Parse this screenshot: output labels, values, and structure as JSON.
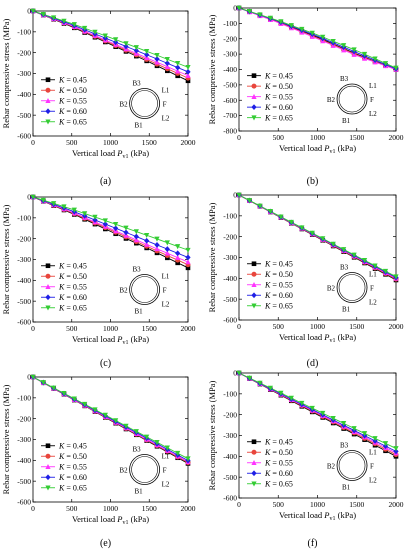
{
  "figure": {
    "legend_symbol": "K",
    "ring_labels": [
      "B3",
      "L1",
      "F",
      "L2",
      "B1",
      "B2"
    ]
  },
  "chart_data": [
    {
      "panel": "(a)",
      "type": "line",
      "ylabel": "Rebar compressive stress (MPa)",
      "xlabel_main": "Vertical load ",
      "xlabel_var": "P",
      "xlabel_sub": "v1",
      "xlabel_unit": " (kPa)",
      "xlim": [
        0,
        2000
      ],
      "ylim": [
        -600,
        0
      ],
      "xticks": [
        0,
        500,
        1000,
        1500,
        2000
      ],
      "yticks": [
        0,
        -100,
        -200,
        -300,
        -400,
        -500,
        -600
      ],
      "legend": "left",
      "series": [
        {
          "name": "= 0.45",
          "color": "#000000",
          "marker": "square",
          "x": [
            0,
            500,
            1000,
            1500,
            2000
          ],
          "y": [
            0,
            -75,
            -160,
            -245,
            -335
          ]
        },
        {
          "name": "= 0.50",
          "color": "#e8453c",
          "marker": "circle",
          "x": [
            0,
            500,
            1000,
            1500,
            2000
          ],
          "y": [
            0,
            -72,
            -155,
            -238,
            -322
          ]
        },
        {
          "name": "= 0.55",
          "color": "#ff33ff",
          "marker": "triangle",
          "x": [
            0,
            500,
            1000,
            1500,
            2000
          ],
          "y": [
            0,
            -70,
            -150,
            -230,
            -310
          ]
        },
        {
          "name": "= 0.60",
          "color": "#1f1fe6",
          "marker": "diamond",
          "x": [
            0,
            500,
            1000,
            1500,
            2000
          ],
          "y": [
            0,
            -65,
            -140,
            -215,
            -292
          ]
        },
        {
          "name": "= 0.65",
          "color": "#33cc33",
          "marker": "triangle-down",
          "x": [
            0,
            500,
            1000,
            1500,
            2000
          ],
          "y": [
            0,
            -60,
            -128,
            -198,
            -270
          ]
        }
      ]
    },
    {
      "panel": "(b)",
      "type": "line",
      "ylabel": "Rebar compressive stress (MPa)",
      "xlabel_main": "Vertical load ",
      "xlabel_var": "P",
      "xlabel_sub": "v1",
      "xlabel_unit": " (kPa)",
      "xlim": [
        0,
        2000
      ],
      "ylim": [
        -800,
        0
      ],
      "xticks": [
        0,
        500,
        1000,
        1500,
        2000
      ],
      "yticks": [
        0,
        -100,
        -200,
        -300,
        -400,
        -500,
        -600,
        -700,
        -800
      ],
      "legend": "left",
      "series": [
        {
          "name": "= 0.45",
          "color": "#000000",
          "marker": "square",
          "x": [
            0,
            500,
            1000,
            1500,
            2000
          ],
          "y": [
            0,
            -90,
            -190,
            -300,
            -400
          ]
        },
        {
          "name": "= 0.50",
          "color": "#e8453c",
          "marker": "circle",
          "x": [
            0,
            500,
            1000,
            1500,
            2000
          ],
          "y": [
            0,
            -92,
            -195,
            -305,
            -400
          ]
        },
        {
          "name": "= 0.55",
          "color": "#ff33ff",
          "marker": "triangle",
          "x": [
            0,
            500,
            1000,
            1500,
            2000
          ],
          "y": [
            0,
            -95,
            -200,
            -310,
            -400
          ]
        },
        {
          "name": "= 0.60",
          "color": "#1f1fe6",
          "marker": "diamond",
          "x": [
            0,
            500,
            1000,
            1500,
            2000
          ],
          "y": [
            0,
            -86,
            -183,
            -290,
            -395
          ]
        },
        {
          "name": "= 0.65",
          "color": "#33cc33",
          "marker": "triangle-down",
          "x": [
            0,
            500,
            1000,
            1500,
            2000
          ],
          "y": [
            0,
            -82,
            -175,
            -278,
            -390
          ]
        }
      ]
    },
    {
      "panel": "(c)",
      "type": "line",
      "ylabel": "Rebar compressive stress (MPa)",
      "xlabel_main": "Vertical load ",
      "xlabel_var": "P",
      "xlabel_sub": "v1",
      "xlabel_unit": " (kPa)",
      "xlim": [
        0,
        2000
      ],
      "ylim": [
        -600,
        0
      ],
      "xticks": [
        0,
        500,
        1000,
        1500,
        2000
      ],
      "yticks": [
        0,
        -100,
        -200,
        -300,
        -400,
        -500,
        -600
      ],
      "legend": "left",
      "series": [
        {
          "name": "= 0.45",
          "color": "#000000",
          "marker": "square",
          "x": [
            0,
            500,
            1000,
            1500,
            2000
          ],
          "y": [
            0,
            -78,
            -165,
            -250,
            -340
          ]
        },
        {
          "name": "= 0.50",
          "color": "#e8453c",
          "marker": "circle",
          "x": [
            0,
            500,
            1000,
            1500,
            2000
          ],
          "y": [
            0,
            -75,
            -158,
            -242,
            -325
          ]
        },
        {
          "name": "= 0.55",
          "color": "#ff33ff",
          "marker": "triangle",
          "x": [
            0,
            500,
            1000,
            1500,
            2000
          ],
          "y": [
            0,
            -72,
            -152,
            -233,
            -312
          ]
        },
        {
          "name": "= 0.60",
          "color": "#1f1fe6",
          "marker": "diamond",
          "x": [
            0,
            500,
            1000,
            1500,
            2000
          ],
          "y": [
            0,
            -66,
            -140,
            -215,
            -290
          ]
        },
        {
          "name": "= 0.65",
          "color": "#33cc33",
          "marker": "triangle-down",
          "x": [
            0,
            500,
            1000,
            1500,
            2000
          ],
          "y": [
            0,
            -58,
            -122,
            -188,
            -255
          ]
        }
      ]
    },
    {
      "panel": "(d)",
      "type": "line",
      "ylabel": "Rebar compressive stress (MPa)",
      "xlabel_main": "Vertical load ",
      "xlabel_var": "P",
      "xlabel_sub": "v1",
      "xlabel_unit": " (kPa)",
      "xlim": [
        0,
        2000
      ],
      "ylim": [
        -600,
        0
      ],
      "xticks": [
        0,
        500,
        1000,
        1500,
        2000
      ],
      "yticks": [
        0,
        -100,
        -200,
        -300,
        -400,
        -500,
        -600
      ],
      "legend": "left",
      "series": [
        {
          "name": "= 0.45",
          "color": "#000000",
          "marker": "square",
          "x": [
            0,
            500,
            1000,
            1500,
            2000
          ],
          "y": [
            0,
            -102,
            -204,
            -306,
            -408
          ]
        },
        {
          "name": "= 0.50",
          "color": "#e8453c",
          "marker": "circle",
          "x": [
            0,
            500,
            1000,
            1500,
            2000
          ],
          "y": [
            0,
            -101,
            -202,
            -303,
            -404
          ]
        },
        {
          "name": "= 0.55",
          "color": "#ff33ff",
          "marker": "triangle",
          "x": [
            0,
            500,
            1000,
            1500,
            2000
          ],
          "y": [
            0,
            -100,
            -200,
            -300,
            -400
          ]
        },
        {
          "name": "= 0.60",
          "color": "#1f1fe6",
          "marker": "diamond",
          "x": [
            0,
            500,
            1000,
            1500,
            2000
          ],
          "y": [
            0,
            -99,
            -198,
            -297,
            -396
          ]
        },
        {
          "name": "= 0.65",
          "color": "#33cc33",
          "marker": "triangle-down",
          "x": [
            0,
            500,
            1000,
            1500,
            2000
          ],
          "y": [
            0,
            -98,
            -196,
            -294,
            -392
          ]
        }
      ]
    },
    {
      "panel": "(e)",
      "type": "line",
      "ylabel": "Rebar compressive stress (MPa)",
      "xlabel_main": "Vertical load ",
      "xlabel_var": "P",
      "xlabel_sub": "v1",
      "xlabel_unit": " (kPa)",
      "xlim": [
        0,
        2000
      ],
      "ylim": [
        -600,
        0
      ],
      "xticks": [
        0,
        500,
        1000,
        1500,
        2000
      ],
      "yticks": [
        0,
        -100,
        -200,
        -300,
        -400,
        -500,
        -600
      ],
      "legend": "left",
      "series": [
        {
          "name": "= 0.45",
          "color": "#000000",
          "marker": "square",
          "x": [
            0,
            500,
            1000,
            1500,
            2000
          ],
          "y": [
            0,
            -104,
            -208,
            -312,
            -415
          ]
        },
        {
          "name": "= 0.50",
          "color": "#e8453c",
          "marker": "circle",
          "x": [
            0,
            500,
            1000,
            1500,
            2000
          ],
          "y": [
            0,
            -103,
            -206,
            -309,
            -411
          ]
        },
        {
          "name": "= 0.55",
          "color": "#ff33ff",
          "marker": "triangle",
          "x": [
            0,
            500,
            1000,
            1500,
            2000
          ],
          "y": [
            0,
            -102,
            -204,
            -306,
            -407
          ]
        },
        {
          "name": "= 0.60",
          "color": "#1f1fe6",
          "marker": "diamond",
          "x": [
            0,
            500,
            1000,
            1500,
            2000
          ],
          "y": [
            0,
            -100,
            -200,
            -300,
            -401
          ]
        },
        {
          "name": "= 0.65",
          "color": "#33cc33",
          "marker": "triangle-down",
          "x": [
            0,
            500,
            1000,
            1500,
            2000
          ],
          "y": [
            0,
            -98,
            -196,
            -294,
            -392
          ]
        }
      ]
    },
    {
      "panel": "(f)",
      "type": "line",
      "ylabel": "Rebar compressive stress (MPa)",
      "xlabel_main": "Vertical load ",
      "xlabel_var": "P",
      "xlabel_sub": "v1",
      "xlabel_unit": " (kPa)",
      "xlim": [
        0,
        2000
      ],
      "ylim": [
        -600,
        0
      ],
      "xticks": [
        0,
        500,
        1000,
        1500,
        2000
      ],
      "yticks": [
        0,
        -100,
        -200,
        -300,
        -400,
        -500,
        -600
      ],
      "legend": "left",
      "series": [
        {
          "name": "= 0.45",
          "color": "#000000",
          "marker": "square",
          "x": [
            0,
            500,
            1000,
            1500,
            2000
          ],
          "y": [
            0,
            -100,
            -200,
            -300,
            -400
          ]
        },
        {
          "name": "= 0.50",
          "color": "#e8453c",
          "marker": "circle",
          "x": [
            0,
            500,
            1000,
            1500,
            2000
          ],
          "y": [
            0,
            -98,
            -196,
            -294,
            -392
          ]
        },
        {
          "name": "= 0.55",
          "color": "#ff33ff",
          "marker": "triangle",
          "x": [
            0,
            500,
            1000,
            1500,
            2000
          ],
          "y": [
            0,
            -96,
            -192,
            -288,
            -384
          ]
        },
        {
          "name": "= 0.60",
          "color": "#1f1fe6",
          "marker": "diamond",
          "x": [
            0,
            500,
            1000,
            1500,
            2000
          ],
          "y": [
            0,
            -94,
            -188,
            -282,
            -376
          ]
        },
        {
          "name": "= 0.65",
          "color": "#33cc33",
          "marker": "triangle-down",
          "x": [
            0,
            500,
            1000,
            1500,
            2000
          ],
          "y": [
            0,
            -90,
            -181,
            -272,
            -362
          ]
        }
      ]
    }
  ]
}
